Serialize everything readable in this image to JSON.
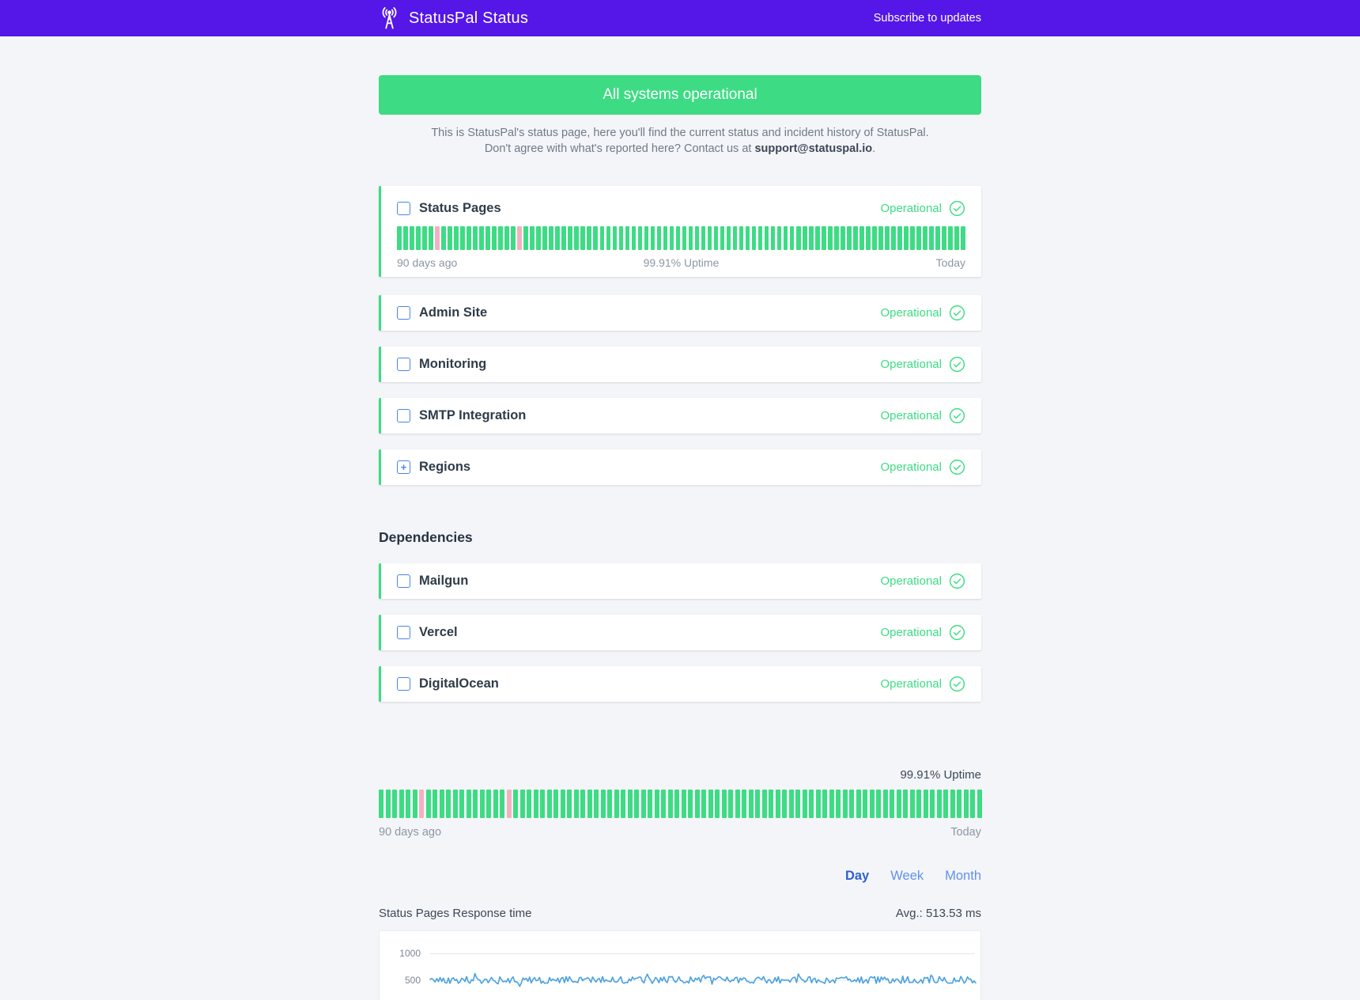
{
  "header": {
    "title": "StatusPal Status",
    "subscribe_link": "Subscribe to updates"
  },
  "banner": {
    "message": "All systems operational"
  },
  "intro": {
    "line1": "This is StatusPal's status page, here you'll find the current status and incident history of StatusPal.",
    "line2_before_email": "Don't agree with what's reported here? Contact us at ",
    "email": "support@statuspal.io",
    "line2_after_email": "."
  },
  "services": [
    {
      "name": "Status Pages",
      "status": "Operational",
      "uptime_bar": {
        "left_label": "90 days ago",
        "center_label": "99.91% Uptime",
        "right_label": "Today",
        "days": 90,
        "down_day_indices": [
          6,
          19
        ]
      }
    },
    {
      "name": "Admin Site",
      "status": "Operational"
    },
    {
      "name": "Monitoring",
      "status": "Operational"
    },
    {
      "name": "SMTP Integration",
      "status": "Operational"
    },
    {
      "name": "Regions",
      "status": "Operational",
      "expandable": true,
      "expand_glyph": "+"
    }
  ],
  "dependencies": {
    "heading": "Dependencies",
    "items": [
      {
        "name": "Mailgun",
        "status": "Operational"
      },
      {
        "name": "Vercel",
        "status": "Operational"
      },
      {
        "name": "DigitalOcean",
        "status": "Operational"
      }
    ]
  },
  "overall_uptime": {
    "uptime_label": "99.91% Uptime",
    "left_label": "90 days ago",
    "right_label": "Today",
    "days": 90,
    "down_day_indices": [
      6,
      19
    ]
  },
  "period_tabs": [
    {
      "label": "Day",
      "active": true
    },
    {
      "label": "Week",
      "active": false
    },
    {
      "label": "Month",
      "active": false
    }
  ],
  "chart_data": {
    "type": "line",
    "title": "Status Pages Response time",
    "avg_label": "Avg.: 513.53 ms",
    "avg_ms": 513.53,
    "unit": "ms",
    "y_ticks": [
      1000,
      500
    ],
    "ylim": [
      0,
      1250
    ],
    "baseline_ms": 500,
    "noise_ms": 130,
    "grid": true,
    "legend": "none",
    "x_range": [
      "90 days ago",
      "Today"
    ]
  },
  "colors": {
    "header_bg": "#5516e8",
    "ok_green": "#3ddc84",
    "down_pink": "#f2b1c1",
    "tab_active_blue": "#3061cf",
    "tab_inactive_blue": "#6290ea",
    "chart_line_blue": "#4aa0e0"
  }
}
